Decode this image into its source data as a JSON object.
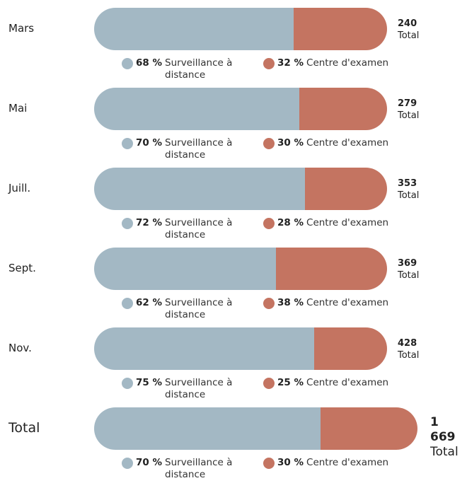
{
  "chart_data": {
    "type": "bar",
    "categories": [
      "Mars",
      "Mai",
      "Juill.",
      "Sept.",
      "Nov.",
      "Total"
    ],
    "series": [
      {
        "name": "Surveillance à distance",
        "color": "#a3b8c4",
        "values": [
          68,
          70,
          72,
          62,
          75,
          70
        ],
        "value_labels": [
          "68 %",
          "70 %",
          "72 %",
          "62 %",
          "75 %",
          "70 %"
        ]
      },
      {
        "name": "Centre d'examen",
        "color": "#c47461",
        "values": [
          32,
          30,
          28,
          38,
          25,
          30
        ],
        "value_labels": [
          "32 %",
          "30 %",
          "28 %",
          "38 %",
          "25 %",
          "30 %"
        ]
      }
    ],
    "totals": {
      "label": "Total",
      "values": [
        240,
        279,
        353,
        369,
        428,
        1669
      ],
      "value_labels": [
        "240",
        "279",
        "353",
        "369",
        "428",
        "1 669"
      ]
    }
  }
}
